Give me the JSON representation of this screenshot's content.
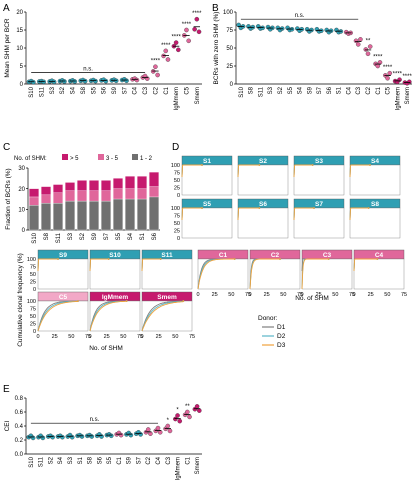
{
  "panels": {
    "A": {
      "label": "A"
    },
    "B": {
      "label": "B"
    },
    "C": {
      "label": "C"
    },
    "D": {
      "label": "D"
    },
    "E": {
      "label": "E"
    }
  },
  "colors": {
    "teal": "#2f9fb3",
    "pink": "#e0679b",
    "magenta": "#c61a6e",
    "light_pink": "#f2a8c7",
    "dark_gray": "#707070",
    "d1": "#7f7f7f",
    "d2": "#59b6c7",
    "d3": "#f0a23c"
  },
  "chart_data": [
    {
      "id": "A",
      "type": "scatter",
      "ylabel": "Mean SHM per BCR",
      "ylim": [
        0,
        20
      ],
      "yticks": [
        0,
        5,
        10,
        15,
        20
      ],
      "categories": [
        "S10",
        "S11",
        "S3",
        "S2",
        "S4",
        "S8",
        "S5",
        "S6",
        "S9",
        "S7",
        "C4",
        "C3",
        "C2",
        "C1",
        "IgMmem",
        "C5",
        "Smem"
      ],
      "category_colors": [
        "teal",
        "teal",
        "teal",
        "teal",
        "teal",
        "teal",
        "teal",
        "teal",
        "teal",
        "teal",
        "pink",
        "pink",
        "pink",
        "pink",
        "magenta",
        "pink",
        "magenta"
      ],
      "series": [
        {
          "name": "D1",
          "values": [
            0.6,
            0.7,
            0.7,
            0.8,
            0.8,
            0.9,
            0.9,
            1.0,
            1.0,
            1.1,
            1.3,
            1.8,
            3.5,
            7.8,
            10.5,
            13.5,
            15.2
          ]
        },
        {
          "name": "D2",
          "values": [
            0.8,
            0.8,
            0.9,
            1.0,
            1.0,
            1.1,
            1.1,
            1.2,
            1.2,
            1.3,
            1.5,
            2.2,
            4.8,
            9.2,
            11.5,
            15.0,
            18.0
          ]
        },
        {
          "name": "D3",
          "values": [
            0.5,
            0.6,
            0.6,
            0.7,
            0.7,
            0.8,
            0.8,
            0.8,
            0.9,
            0.9,
            1.1,
            1.5,
            2.5,
            6.8,
            9.5,
            12.0,
            14.5
          ]
        }
      ],
      "annotations": {
        "ns_label": "n.s.",
        "sig": [
          "****",
          "****",
          "****",
          "****",
          "****"
        ]
      }
    },
    {
      "id": "B",
      "type": "scatter",
      "ylabel": "BCRs with zero SHM (%)",
      "ylim": [
        0,
        100
      ],
      "yticks": [
        0,
        25,
        50,
        75,
        100
      ],
      "categories": [
        "S10",
        "S8",
        "S11",
        "S3",
        "S2",
        "S5",
        "S4",
        "S9",
        "S7",
        "S6",
        "S1",
        "C4",
        "C3",
        "C2",
        "C1",
        "C5",
        "IgMmem",
        "Smem"
      ],
      "category_colors": [
        "teal",
        "teal",
        "teal",
        "teal",
        "teal",
        "teal",
        "teal",
        "teal",
        "teal",
        "teal",
        "teal",
        "pink",
        "pink",
        "pink",
        "pink",
        "pink",
        "magenta",
        "magenta"
      ],
      "series": [
        {
          "name": "D1",
          "values": [
            82,
            80,
            80,
            79,
            78,
            78,
            77,
            76,
            76,
            75,
            75,
            72,
            60,
            48,
            28,
            12,
            4,
            2
          ]
        },
        {
          "name": "D2",
          "values": [
            78,
            77,
            77,
            76,
            75,
            75,
            74,
            73,
            73,
            72,
            72,
            70,
            55,
            42,
            25,
            8,
            3,
            1
          ]
        },
        {
          "name": "D3",
          "values": [
            80,
            79,
            78,
            78,
            77,
            76,
            76,
            75,
            74,
            74,
            73,
            71,
            62,
            52,
            30,
            15,
            6,
            3
          ]
        }
      ],
      "annotations": {
        "ns_label": "n.s.",
        "sig": [
          "**",
          "****",
          "****",
          "****",
          "****"
        ]
      }
    },
    {
      "id": "C",
      "type": "bar",
      "ylabel": "Fraction of BCRs (%)",
      "ylim": [
        0,
        30
      ],
      "yticks": [
        0,
        10,
        20,
        30
      ],
      "legend_title": "No. of SHM:",
      "categories": [
        "S10",
        "S8",
        "S11",
        "S3",
        "S2",
        "S9",
        "S7",
        "S5",
        "S4",
        "S1",
        "S6"
      ],
      "series": [
        {
          "name": "1 - 2",
          "color": "dark_gray",
          "values": [
            12,
            13,
            13,
            14,
            14,
            14,
            14,
            15,
            15,
            15,
            16
          ]
        },
        {
          "name": "3 - 5",
          "color": "pink",
          "values": [
            4,
            4,
            5,
            5,
            5,
            5,
            5,
            5,
            5,
            5,
            5
          ]
        },
        {
          "name": "> 5",
          "color": "magenta",
          "values": [
            4,
            4,
            4,
            4,
            5,
            5,
            5,
            5,
            6,
            6,
            7
          ]
        }
      ]
    },
    {
      "id": "D",
      "type": "line",
      "ylabel": "Cumulative clonal frequency (%)",
      "xlabel": "No. of SHM",
      "xlim": [
        0,
        75
      ],
      "xticks": [
        0,
        25,
        50,
        75
      ],
      "ylim": [
        0,
        100
      ],
      "yticks": [
        0,
        25,
        50,
        75,
        100
      ],
      "legend_title": "Donor:",
      "legend": [
        "D1",
        "D2",
        "D3"
      ],
      "facets": [
        {
          "label": "S1",
          "color": "teal",
          "x50": 0.5,
          "max": 30
        },
        {
          "label": "S2",
          "color": "teal",
          "x50": 0.5,
          "max": 32
        },
        {
          "label": "S3",
          "color": "teal",
          "x50": 0.5,
          "max": 28
        },
        {
          "label": "S4",
          "color": "teal",
          "x50": 0.5,
          "max": 30
        },
        {
          "label": "S5",
          "color": "teal",
          "x50": 0.5,
          "max": 30
        },
        {
          "label": "S6",
          "color": "teal",
          "x50": 0.5,
          "max": 32
        },
        {
          "label": "S7",
          "color": "teal",
          "x50": 0.5,
          "max": 30
        },
        {
          "label": "S8",
          "color": "teal",
          "x50": 0.5,
          "max": 28
        },
        {
          "label": "S9",
          "color": "teal",
          "x50": 0.5,
          "max": 30
        },
        {
          "label": "S10",
          "color": "teal",
          "x50": 0.5,
          "max": 28
        },
        {
          "label": "S11",
          "color": "teal",
          "x50": 0.5,
          "max": 28
        },
        {
          "label": "C1",
          "color": "pink",
          "x50": 6,
          "max": 55
        },
        {
          "label": "C2",
          "color": "pink",
          "x50": 2,
          "max": 45
        },
        {
          "label": "C3",
          "color": "pink",
          "x50": 1,
          "max": 40
        },
        {
          "label": "C4",
          "color": "pink",
          "x50": 0.8,
          "max": 35
        },
        {
          "label": "C5",
          "color": "light_pink",
          "x50": 12,
          "max": 60
        },
        {
          "label": "IgMmem",
          "color": "magenta",
          "x50": 10,
          "max": 55
        },
        {
          "label": "Smem",
          "color": "magenta",
          "x50": 14,
          "max": 62
        }
      ]
    },
    {
      "id": "E",
      "type": "scatter",
      "ylabel": "CEI",
      "ylim": [
        0,
        0.8
      ],
      "yticks": [
        0.0,
        0.2,
        0.4,
        0.6,
        0.8
      ],
      "categories": [
        "S10",
        "S11",
        "S2",
        "S4",
        "S3",
        "S1",
        "S8",
        "S6",
        "S5",
        "C1",
        "S9",
        "S7",
        "C2",
        "C4",
        "C3",
        "IgMmem",
        "C1",
        "Smem"
      ],
      "category_colors": [
        "teal",
        "teal",
        "teal",
        "teal",
        "teal",
        "teal",
        "teal",
        "teal",
        "teal",
        "pink",
        "teal",
        "teal",
        "pink",
        "pink",
        "pink",
        "magenta",
        "pink",
        "magenta"
      ],
      "series": [
        {
          "name": "D1",
          "values": [
            0.24,
            0.24,
            0.25,
            0.25,
            0.25,
            0.26,
            0.26,
            0.26,
            0.27,
            0.28,
            0.28,
            0.29,
            0.31,
            0.33,
            0.36,
            0.5,
            0.56,
            0.64
          ]
        },
        {
          "name": "D2",
          "values": [
            0.26,
            0.26,
            0.26,
            0.26,
            0.27,
            0.27,
            0.27,
            0.28,
            0.28,
            0.3,
            0.3,
            0.31,
            0.35,
            0.37,
            0.4,
            0.55,
            0.6,
            0.68
          ]
        },
        {
          "name": "D3",
          "values": [
            0.23,
            0.23,
            0.24,
            0.24,
            0.24,
            0.25,
            0.25,
            0.25,
            0.26,
            0.27,
            0.27,
            0.28,
            0.29,
            0.31,
            0.33,
            0.47,
            0.53,
            0.62
          ]
        }
      ],
      "annotations": {
        "ns_label": "n.s.",
        "sig": [
          "*",
          "*",
          "**"
        ]
      }
    }
  ]
}
